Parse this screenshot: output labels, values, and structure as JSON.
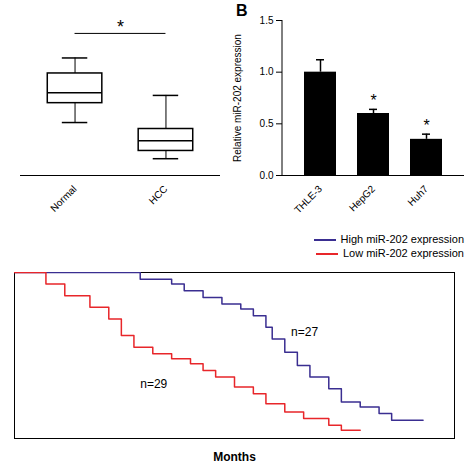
{
  "chart_data": [
    {
      "type": "box",
      "categories": [
        "Normal",
        "HCC"
      ],
      "boxes": [
        {
          "min": 0.41,
          "q1": 0.56,
          "median": 0.64,
          "q3": 0.79,
          "max": 0.91
        },
        {
          "min": 0.13,
          "q1": 0.19,
          "median": 0.27,
          "q3": 0.36,
          "max": 0.62
        }
      ],
      "ylim": [
        0,
        1.2
      ],
      "tick_labels": "x",
      "color": "#000000",
      "annotations": [
        {
          "from": 0,
          "to": 1,
          "y": 1.1,
          "text": "*"
        }
      ]
    },
    {
      "type": "bar",
      "panel_label": "B",
      "categories": [
        "THLE-3",
        "HepG2",
        "Huh7"
      ],
      "values": [
        1.0,
        0.6,
        0.35
      ],
      "errors": [
        0.12,
        0.04,
        0.05
      ],
      "color": "#000000",
      "y_label": "Relative miR-202 expression",
      "ylim": [
        0,
        1.5
      ],
      "yticks": [
        {
          "value": 0,
          "label": "0.0"
        },
        {
          "value": 0.5,
          "label": "0.5"
        },
        {
          "value": 1.0,
          "label": "1.0"
        },
        {
          "value": 1.5,
          "label": "1.5"
        }
      ],
      "annotations": [
        {
          "category": "HepG2",
          "text": "*"
        },
        {
          "category": "Huh7",
          "text": "*"
        }
      ]
    },
    {
      "type": "line",
      "line_style": "step",
      "x_label": "Months",
      "xlim": [
        0,
        70
      ],
      "ylim": [
        0,
        1
      ],
      "tick_labels": false,
      "legend": "top-right",
      "series": [
        {
          "name": "High miR-202 expression",
          "color": "#3a2e91",
          "x": [
            0,
            18,
            20,
            25,
            27,
            30,
            33,
            36,
            38,
            40,
            41,
            43,
            45,
            47,
            50,
            52,
            55,
            58,
            60,
            65
          ],
          "values": [
            1,
            1,
            0.96,
            0.93,
            0.89,
            0.85,
            0.81,
            0.78,
            0.74,
            0.67,
            0.6,
            0.52,
            0.44,
            0.37,
            0.3,
            0.22,
            0.19,
            0.15,
            0.11,
            0.11
          ]
        },
        {
          "name": "Low miR-202 expression",
          "color": "#e8262a",
          "x": [
            0,
            5,
            8,
            12,
            15,
            17,
            19,
            22,
            25,
            28,
            30,
            32,
            35,
            38,
            40,
            43,
            46,
            50,
            52,
            55
          ],
          "values": [
            1,
            0.93,
            0.86,
            0.79,
            0.72,
            0.62,
            0.55,
            0.51,
            0.48,
            0.45,
            0.41,
            0.37,
            0.31,
            0.27,
            0.21,
            0.16,
            0.12,
            0.08,
            0.05,
            0.05
          ]
        }
      ],
      "annotations": [
        {
          "x": 44,
          "y": 0.64,
          "text": "n=27"
        },
        {
          "x": 20,
          "y": 0.33,
          "text": "n=29"
        }
      ]
    }
  ]
}
